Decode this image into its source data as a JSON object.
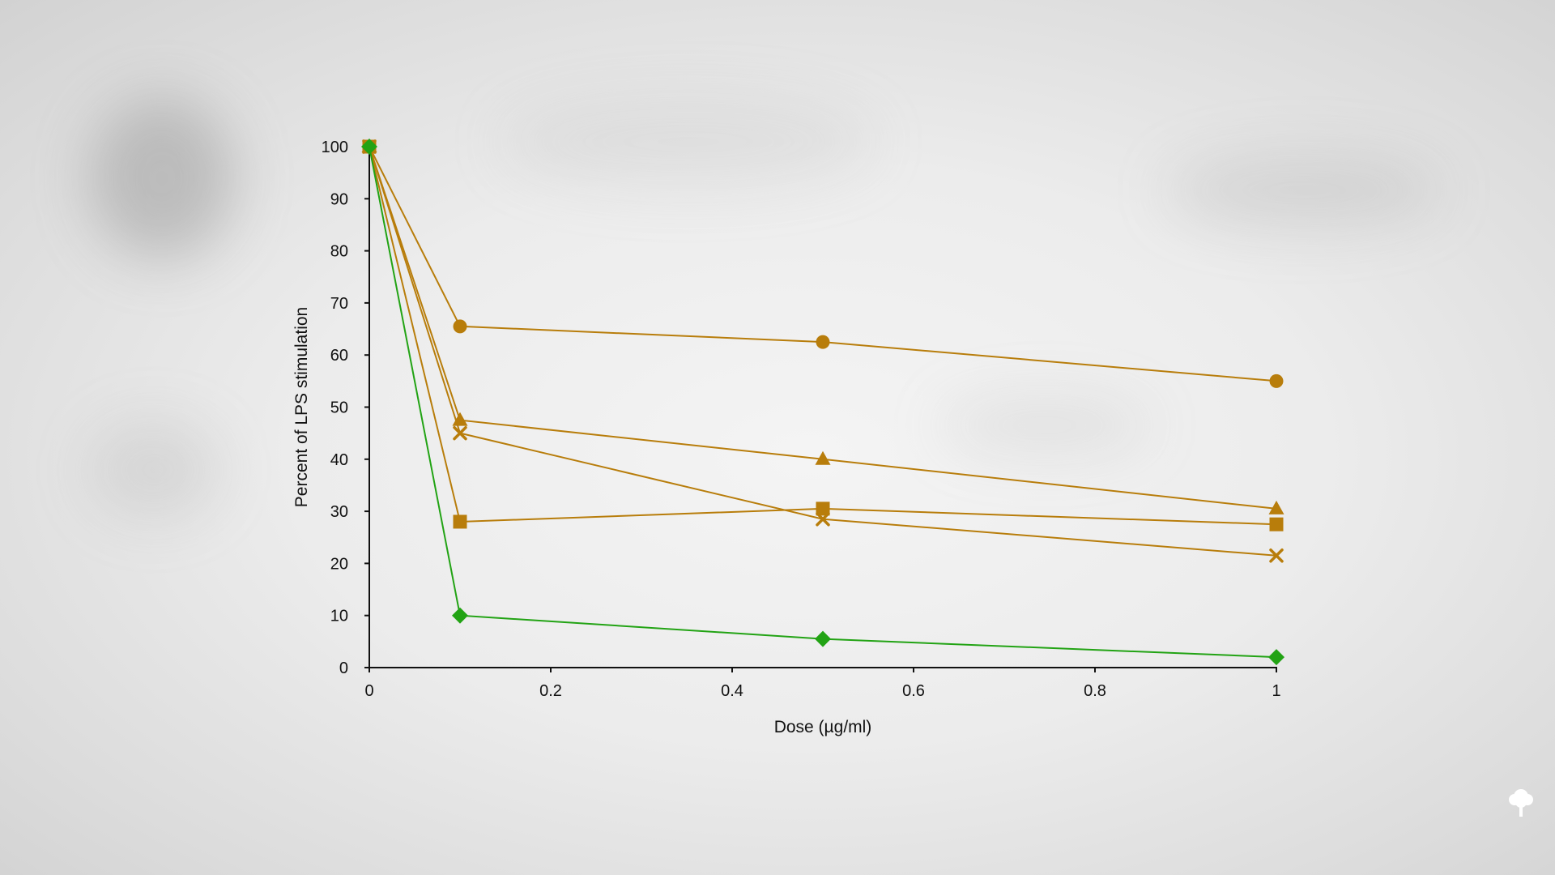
{
  "chart_data": {
    "type": "line",
    "title": "",
    "xlabel": "Dose (µg/ml)",
    "ylabel": "Percent of LPS stimulation",
    "xlim": [
      0,
      1
    ],
    "ylim": [
      0,
      100
    ],
    "x_ticks": [
      "0",
      "0.2",
      "0.4",
      "0.6",
      "0.8",
      "1"
    ],
    "y_ticks": [
      "0",
      "10",
      "20",
      "30",
      "40",
      "50",
      "60",
      "70",
      "80",
      "90",
      "100"
    ],
    "grid": false,
    "legend": "none",
    "x": [
      0,
      0.1,
      0.5,
      1
    ],
    "series": [
      {
        "marker": "circle",
        "color": "#b87d0b",
        "values": [
          100,
          65.5,
          62.5,
          55
        ]
      },
      {
        "marker": "triangle",
        "color": "#b87d0b",
        "values": [
          100,
          47.5,
          40,
          30.5
        ]
      },
      {
        "marker": "cross",
        "color": "#b87d0b",
        "values": [
          100,
          45,
          28.5,
          21.5
        ]
      },
      {
        "marker": "square",
        "color": "#b87d0b",
        "values": [
          100,
          28,
          30.5,
          27.5
        ]
      },
      {
        "marker": "diamond",
        "color": "#22a314",
        "values": [
          100,
          10,
          5.5,
          2
        ]
      }
    ]
  },
  "branding": {
    "logo_icon": "tree-icon"
  }
}
